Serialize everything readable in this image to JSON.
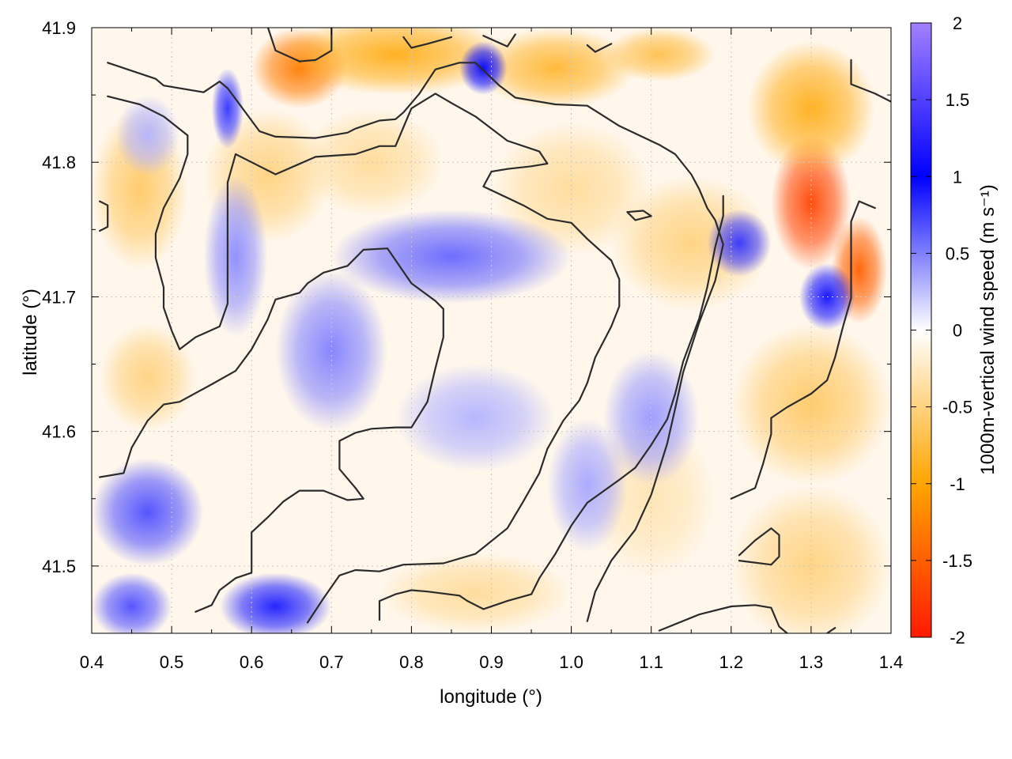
{
  "chart_data": {
    "type": "heatmap",
    "xlabel": "longitude (°)",
    "ylabel": "latitude (°)",
    "colorbar_label": "1000m-vertical wind speed (m s⁻¹)",
    "xlim": [
      0.4,
      1.4
    ],
    "ylim": [
      41.45,
      41.9
    ],
    "clim": [
      -2,
      2
    ],
    "x_ticks": [
      0.4,
      0.5,
      0.6,
      0.7,
      0.8,
      0.9,
      1.0,
      1.1,
      1.2,
      1.3,
      1.4
    ],
    "x_tick_labels": [
      "0.4",
      "0.5",
      "0.6",
      "0.7",
      "0.8",
      "0.9",
      "1.0",
      "1.1",
      "1.2",
      "1.3",
      "1.4"
    ],
    "y_ticks": [
      41.5,
      41.6,
      41.7,
      41.8,
      41.9
    ],
    "y_tick_labels": [
      "41.5",
      "41.6",
      "41.7",
      "41.8",
      "41.9"
    ],
    "colorbar_ticks": [
      2,
      1.5,
      1,
      0.5,
      0,
      -0.5,
      -1,
      -1.5,
      -2
    ],
    "colorbar_tick_labels": [
      "2",
      "1.5",
      "1",
      "0.5",
      "0",
      "-0.5",
      "-1",
      "-1.5",
      "-2"
    ],
    "colormap": [
      {
        "v": -2,
        "color": "#ff1a00"
      },
      {
        "v": -1,
        "color": "#ffa500"
      },
      {
        "v": 0,
        "color": "#ffffff"
      },
      {
        "v": 1,
        "color": "#0000ff"
      },
      {
        "v": 2,
        "color": "#a280ff"
      }
    ],
    "grid": true,
    "field_blobs": [
      {
        "lon": 0.66,
        "lat": 41.87,
        "value": -1.3,
        "rlon": 0.06,
        "rlat": 0.03
      },
      {
        "lon": 0.78,
        "lat": 41.88,
        "value": -0.9,
        "rlon": 0.14,
        "rlat": 0.03
      },
      {
        "lon": 0.98,
        "lat": 41.87,
        "value": -0.8,
        "rlon": 0.1,
        "rlat": 0.03
      },
      {
        "lon": 1.11,
        "lat": 41.88,
        "value": -0.7,
        "rlon": 0.07,
        "rlat": 0.02
      },
      {
        "lon": 1.3,
        "lat": 41.77,
        "value": -1.7,
        "rlon": 0.05,
        "rlat": 0.05
      },
      {
        "lon": 1.36,
        "lat": 41.72,
        "value": -1.5,
        "rlon": 0.035,
        "rlat": 0.04
      },
      {
        "lon": 1.3,
        "lat": 41.84,
        "value": -0.9,
        "rlon": 0.08,
        "rlat": 0.05
      },
      {
        "lon": 1.3,
        "lat": 41.62,
        "value": -0.6,
        "rlon": 0.1,
        "rlat": 0.06
      },
      {
        "lon": 1.3,
        "lat": 41.5,
        "value": -0.5,
        "rlon": 0.1,
        "rlat": 0.06
      },
      {
        "lon": 1.15,
        "lat": 41.74,
        "value": -0.5,
        "rlon": 0.1,
        "rlat": 0.05
      },
      {
        "lon": 1.0,
        "lat": 41.78,
        "value": -0.4,
        "rlon": 0.1,
        "rlat": 0.05
      },
      {
        "lon": 0.46,
        "lat": 41.78,
        "value": -0.6,
        "rlon": 0.06,
        "rlat": 0.06
      },
      {
        "lon": 0.47,
        "lat": 41.64,
        "value": -0.5,
        "rlon": 0.06,
        "rlat": 0.04
      },
      {
        "lon": 0.62,
        "lat": 41.79,
        "value": -0.5,
        "rlon": 0.08,
        "rlat": 0.05
      },
      {
        "lon": 0.75,
        "lat": 41.8,
        "value": -0.4,
        "rlon": 0.09,
        "rlat": 0.04
      },
      {
        "lon": 0.88,
        "lat": 41.48,
        "value": -0.4,
        "rlon": 0.12,
        "rlat": 0.03
      },
      {
        "lon": 1.1,
        "lat": 41.55,
        "value": -0.3,
        "rlon": 0.08,
        "rlat": 0.06
      },
      {
        "lon": 0.89,
        "lat": 41.87,
        "value": 1.0,
        "rlon": 0.03,
        "rlat": 0.02
      },
      {
        "lon": 0.57,
        "lat": 41.84,
        "value": 0.8,
        "rlon": 0.02,
        "rlat": 0.03
      },
      {
        "lon": 0.85,
        "lat": 41.73,
        "value": 0.6,
        "rlon": 0.15,
        "rlat": 0.035
      },
      {
        "lon": 0.7,
        "lat": 41.66,
        "value": 0.5,
        "rlon": 0.07,
        "rlat": 0.06
      },
      {
        "lon": 0.58,
        "lat": 41.73,
        "value": 0.45,
        "rlon": 0.04,
        "rlat": 0.06
      },
      {
        "lon": 0.47,
        "lat": 41.54,
        "value": 0.7,
        "rlon": 0.07,
        "rlat": 0.04
      },
      {
        "lon": 0.45,
        "lat": 41.47,
        "value": 0.7,
        "rlon": 0.05,
        "rlat": 0.025
      },
      {
        "lon": 0.63,
        "lat": 41.47,
        "value": 0.9,
        "rlon": 0.07,
        "rlat": 0.025
      },
      {
        "lon": 0.88,
        "lat": 41.61,
        "value": 0.3,
        "rlon": 0.1,
        "rlat": 0.04
      },
      {
        "lon": 1.21,
        "lat": 41.74,
        "value": 0.8,
        "rlon": 0.04,
        "rlat": 0.025
      },
      {
        "lon": 1.32,
        "lat": 41.7,
        "value": 1.1,
        "rlon": 0.035,
        "rlat": 0.025
      },
      {
        "lon": 1.1,
        "lat": 41.61,
        "value": 0.4,
        "rlon": 0.06,
        "rlat": 0.05
      },
      {
        "lon": 1.02,
        "lat": 41.56,
        "value": 0.35,
        "rlon": 0.05,
        "rlat": 0.05
      },
      {
        "lon": 0.47,
        "lat": 41.82,
        "value": 0.3,
        "rlon": 0.04,
        "rlat": 0.03
      }
    ],
    "contours": [
      [
        [
          0.42,
          41.874
        ],
        [
          0.48,
          41.862
        ],
        [
          0.49,
          41.857
        ],
        [
          0.54,
          41.852
        ],
        [
          0.56,
          41.86
        ],
        [
          0.57,
          41.855
        ],
        [
          0.61,
          41.823
        ],
        [
          0.63,
          41.819
        ],
        [
          0.68,
          41.818
        ],
        [
          0.72,
          41.822
        ],
        [
          0.73,
          41.825
        ],
        [
          0.76,
          41.831
        ],
        [
          0.78,
          41.832
        ],
        [
          0.79,
          41.837
        ],
        [
          0.81,
          41.851
        ],
        [
          0.83,
          41.869
        ],
        [
          0.86,
          41.874
        ],
        [
          0.88,
          41.874
        ],
        [
          0.91,
          41.857
        ],
        [
          0.93,
          41.848
        ],
        [
          0.98,
          41.843
        ],
        [
          1.02,
          41.842
        ],
        [
          1.06,
          41.827
        ],
        [
          1.11,
          41.813
        ],
        [
          1.13,
          41.806
        ],
        [
          1.15,
          41.791
        ],
        [
          1.16,
          41.78
        ],
        [
          1.17,
          41.766
        ],
        [
          1.18,
          41.757
        ],
        [
          1.19,
          41.739
        ],
        [
          1.18,
          41.712
        ],
        [
          1.16,
          41.681
        ],
        [
          1.14,
          41.644
        ],
        [
          1.13,
          41.617
        ],
        [
          1.12,
          41.591
        ],
        [
          1.1,
          41.553
        ],
        [
          1.08,
          41.527
        ],
        [
          1.05,
          41.504
        ],
        [
          1.03,
          41.481
        ],
        [
          1.02,
          41.459
        ]
      ],
      [
        [
          0.42,
          41.849
        ],
        [
          0.46,
          41.843
        ],
        [
          0.49,
          41.834
        ],
        [
          0.52,
          41.82
        ],
        [
          0.52,
          41.806
        ],
        [
          0.51,
          41.788
        ],
        [
          0.49,
          41.766
        ],
        [
          0.48,
          41.747
        ],
        [
          0.48,
          41.729
        ],
        [
          0.49,
          41.707
        ],
        [
          0.49,
          41.692
        ],
        [
          0.5,
          41.675
        ],
        [
          0.51,
          41.661
        ],
        [
          0.53,
          41.67
        ],
        [
          0.56,
          41.678
        ],
        [
          0.57,
          41.695
        ],
        [
          0.57,
          41.716
        ],
        [
          0.57,
          41.749
        ],
        [
          0.57,
          41.785
        ],
        [
          0.58,
          41.806
        ],
        [
          0.6,
          41.8
        ],
        [
          0.63,
          41.791
        ],
        [
          0.68,
          41.804
        ],
        [
          0.73,
          41.806
        ],
        [
          0.76,
          41.812
        ],
        [
          0.78,
          41.812
        ],
        [
          0.8,
          41.84
        ],
        [
          0.83,
          41.851
        ],
        [
          0.85,
          41.844
        ],
        [
          0.88,
          41.834
        ],
        [
          0.92,
          41.816
        ],
        [
          0.96,
          41.808
        ],
        [
          0.97,
          41.799
        ],
        [
          0.95,
          41.797
        ],
        [
          0.92,
          41.795
        ],
        [
          0.9,
          41.793
        ],
        [
          0.89,
          41.782
        ],
        [
          0.94,
          41.768
        ],
        [
          0.97,
          41.758
        ],
        [
          1.0,
          41.755
        ],
        [
          1.02,
          41.743
        ],
        [
          1.05,
          41.727
        ],
        [
          1.06,
          41.713
        ],
        [
          1.06,
          41.693
        ],
        [
          1.05,
          41.678
        ],
        [
          1.03,
          41.655
        ],
        [
          1.02,
          41.636
        ],
        [
          1.01,
          41.623
        ],
        [
          0.99,
          41.608
        ],
        [
          0.97,
          41.587
        ],
        [
          0.96,
          41.569
        ],
        [
          0.94,
          41.548
        ],
        [
          0.92,
          41.528
        ],
        [
          0.88,
          41.509
        ],
        [
          0.84,
          41.502
        ],
        [
          0.79,
          41.501
        ],
        [
          0.76,
          41.496
        ],
        [
          0.73,
          41.497
        ],
        [
          0.71,
          41.493
        ],
        [
          0.69,
          41.476
        ],
        [
          0.67,
          41.458
        ]
      ],
      [
        [
          0.41,
          41.566
        ],
        [
          0.44,
          41.569
        ],
        [
          0.45,
          41.588
        ],
        [
          0.47,
          41.608
        ],
        [
          0.49,
          41.62
        ],
        [
          0.51,
          41.622
        ],
        [
          0.55,
          41.635
        ],
        [
          0.58,
          41.645
        ],
        [
          0.6,
          41.661
        ],
        [
          0.62,
          41.683
        ],
        [
          0.63,
          41.698
        ],
        [
          0.66,
          41.703
        ],
        [
          0.67,
          41.71
        ],
        [
          0.69,
          41.718
        ],
        [
          0.72,
          41.723
        ],
        [
          0.74,
          41.735
        ],
        [
          0.77,
          41.736
        ],
        [
          0.8,
          41.71
        ],
        [
          0.83,
          41.697
        ],
        [
          0.84,
          41.691
        ],
        [
          0.84,
          41.67
        ],
        [
          0.83,
          41.647
        ],
        [
          0.82,
          41.622
        ],
        [
          0.8,
          41.603
        ],
        [
          0.78,
          41.603
        ],
        [
          0.75,
          41.602
        ],
        [
          0.73,
          41.599
        ],
        [
          0.71,
          41.593
        ],
        [
          0.71,
          41.572
        ],
        [
          0.73,
          41.558
        ],
        [
          0.74,
          41.55
        ],
        [
          0.72,
          41.549
        ],
        [
          0.69,
          41.556
        ],
        [
          0.66,
          41.556
        ],
        [
          0.64,
          41.548
        ],
        [
          0.62,
          41.536
        ],
        [
          0.6,
          41.525
        ],
        [
          0.6,
          41.509
        ],
        [
          0.6,
          41.495
        ],
        [
          0.58,
          41.491
        ],
        [
          0.56,
          41.482
        ],
        [
          0.55,
          41.471
        ],
        [
          0.53,
          41.466
        ]
      ],
      [
        [
          0.76,
          41.46
        ],
        [
          0.76,
          41.474
        ],
        [
          0.78,
          41.479
        ],
        [
          0.8,
          41.482
        ],
        [
          0.82,
          41.481
        ],
        [
          0.86,
          41.478
        ],
        [
          0.87,
          41.474
        ],
        [
          0.89,
          41.468
        ],
        [
          0.92,
          41.474
        ],
        [
          0.95,
          41.479
        ],
        [
          0.96,
          41.491
        ],
        [
          0.98,
          41.509
        ],
        [
          1.0,
          41.53
        ],
        [
          1.02,
          41.547
        ],
        [
          1.06,
          41.564
        ],
        [
          1.08,
          41.573
        ],
        [
          1.1,
          41.59
        ],
        [
          1.12,
          41.609
        ],
        [
          1.13,
          41.628
        ],
        [
          1.14,
          41.652
        ],
        [
          1.16,
          41.684
        ],
        [
          1.17,
          41.707
        ],
        [
          1.18,
          41.737
        ],
        [
          1.19,
          41.76
        ],
        [
          1.19,
          41.775
        ]
      ],
      [
        [
          1.11,
          41.452
        ],
        [
          1.16,
          41.464
        ],
        [
          1.2,
          41.47
        ],
        [
          1.23,
          41.471
        ],
        [
          1.25,
          41.469
        ],
        [
          1.26,
          41.455
        ],
        [
          1.27,
          41.45
        ]
      ],
      [
        [
          1.2,
          41.55
        ],
        [
          1.23,
          41.558
        ],
        [
          1.24,
          41.576
        ],
        [
          1.25,
          41.598
        ],
        [
          1.25,
          41.61
        ],
        [
          1.27,
          41.618
        ],
        [
          1.3,
          41.628
        ],
        [
          1.32,
          41.638
        ],
        [
          1.33,
          41.655
        ],
        [
          1.34,
          41.678
        ],
        [
          1.35,
          41.699
        ],
        [
          1.35,
          41.727
        ],
        [
          1.35,
          41.756
        ],
        [
          1.36,
          41.771
        ],
        [
          1.38,
          41.766
        ]
      ],
      [
        [
          1.21,
          41.508
        ],
        [
          1.23,
          41.519
        ],
        [
          1.25,
          41.528
        ],
        [
          1.26,
          41.523
        ],
        [
          1.26,
          41.507
        ],
        [
          1.25,
          41.501
        ],
        [
          1.21,
          41.504
        ]
      ],
      [
        [
          1.07,
          41.763
        ],
        [
          1.09,
          41.764
        ],
        [
          1.1,
          41.76
        ],
        [
          1.08,
          41.757
        ],
        [
          1.07,
          41.763
        ]
      ],
      [
        [
          1.35,
          41.876
        ],
        [
          1.35,
          41.858
        ],
        [
          1.38,
          41.851
        ],
        [
          1.4,
          41.845
        ]
      ],
      [
        [
          0.62,
          41.901
        ],
        [
          0.63,
          41.883
        ],
        [
          0.66,
          41.875
        ],
        [
          0.68,
          41.876
        ],
        [
          0.7,
          41.883
        ],
        [
          0.7,
          41.901
        ]
      ],
      [
        [
          0.79,
          41.893
        ],
        [
          0.8,
          41.885
        ],
        [
          0.82,
          41.888
        ],
        [
          0.85,
          41.893
        ]
      ],
      [
        [
          0.89,
          41.894
        ],
        [
          0.92,
          41.886
        ],
        [
          0.93,
          41.895
        ]
      ],
      [
        [
          1.02,
          41.887
        ],
        [
          1.03,
          41.882
        ],
        [
          1.05,
          41.888
        ]
      ],
      [
        [
          0.41,
          41.771
        ],
        [
          0.42,
          41.768
        ],
        [
          0.42,
          41.752
        ],
        [
          0.41,
          41.749
        ]
      ],
      [
        [
          1.32,
          41.45
        ],
        [
          1.33,
          41.454
        ]
      ]
    ]
  }
}
